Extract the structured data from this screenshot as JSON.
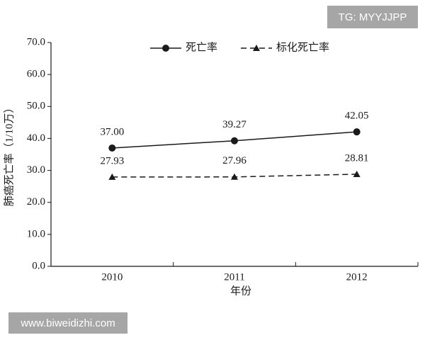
{
  "chart_data": {
    "type": "line",
    "categories": [
      "2010",
      "2011",
      "2012"
    ],
    "series": [
      {
        "name": "死亡率",
        "color": "#1a1a1a",
        "style": "solid",
        "marker": "circle",
        "values": [
          37.0,
          39.27,
          42.05
        ],
        "value_labels": [
          "37.00",
          "39.27",
          "42.05"
        ]
      },
      {
        "name": "标化死亡率",
        "color": "#1a1a1a",
        "style": "dashed",
        "marker": "triangle",
        "values": [
          27.93,
          27.96,
          28.81
        ],
        "value_labels": [
          "27.93",
          "27.96",
          "28.81"
        ]
      }
    ],
    "ylim": [
      0,
      70
    ],
    "yticks": [
      {
        "value": 0,
        "label": "0.0"
      },
      {
        "value": 10,
        "label": "10.0"
      },
      {
        "value": 20,
        "label": "20.0"
      },
      {
        "value": 30,
        "label": "30.0"
      },
      {
        "value": 40,
        "label": "40.0"
      },
      {
        "value": 50,
        "label": "50.0"
      },
      {
        "value": 60,
        "label": "60.0"
      },
      {
        "value": 70,
        "label": "70.0"
      }
    ],
    "ylabel": "肺癌死亡率（1/10万）",
    "xlabel": "年份",
    "legend": "top",
    "grid": false,
    "annotations": [
      "TG: MYYJJPP",
      "www.biweidizhi.com"
    ]
  }
}
